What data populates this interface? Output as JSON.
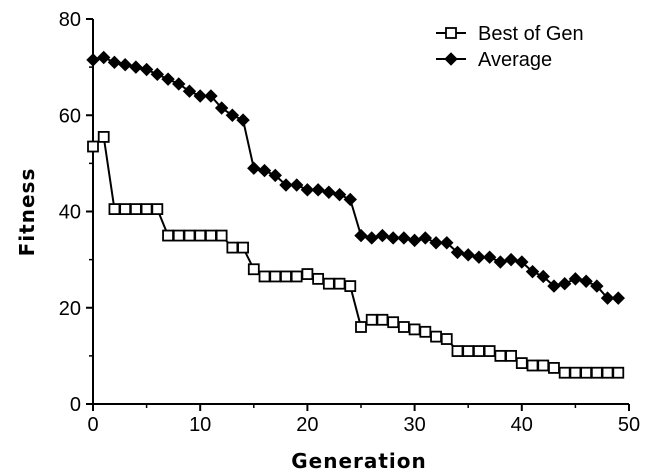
{
  "chart_data": {
    "type": "line",
    "xlabel": "Generation",
    "ylabel": "Fitness",
    "xlim": [
      0,
      50
    ],
    "ylim": [
      0,
      80
    ],
    "x_ticks": [
      0,
      10,
      20,
      30,
      40,
      50
    ],
    "y_ticks": [
      0,
      20,
      40,
      60,
      80
    ],
    "x_tick_labels": [
      "0",
      "10",
      "20",
      "30",
      "40",
      "50"
    ],
    "y_tick_labels": [
      "0",
      "20",
      "40",
      "60",
      "80"
    ],
    "grid": false,
    "legend_position": "top-right",
    "series": [
      {
        "name": "Best of Gen",
        "marker": "open-square",
        "color": "#000000",
        "x": [
          0,
          1,
          2,
          3,
          4,
          5,
          6,
          7,
          8,
          9,
          10,
          11,
          12,
          13,
          14,
          15,
          16,
          17,
          18,
          19,
          20,
          21,
          22,
          23,
          24,
          25,
          26,
          27,
          28,
          29,
          30,
          31,
          32,
          33,
          34,
          35,
          36,
          37,
          38,
          39,
          40,
          41,
          42,
          43,
          44,
          45,
          46,
          47,
          48,
          49
        ],
        "values": [
          53.5,
          55.5,
          40.5,
          40.5,
          40.5,
          40.5,
          40.5,
          35,
          35,
          35,
          35,
          35,
          35,
          32.5,
          32.5,
          28,
          26.5,
          26.5,
          26.5,
          26.5,
          27,
          26,
          25,
          25,
          24.5,
          16,
          17.5,
          17.5,
          17,
          16,
          15.5,
          15,
          14,
          13.5,
          11,
          11,
          11,
          11,
          10,
          10,
          8.5,
          8,
          8,
          7.5,
          6.5,
          6.5,
          6.5,
          6.5,
          6.5,
          6.5
        ]
      },
      {
        "name": "Average",
        "marker": "filled-diamond",
        "color": "#000000",
        "x": [
          0,
          1,
          2,
          3,
          4,
          5,
          6,
          7,
          8,
          9,
          10,
          11,
          12,
          13,
          14,
          15,
          16,
          17,
          18,
          19,
          20,
          21,
          22,
          23,
          24,
          25,
          26,
          27,
          28,
          29,
          30,
          31,
          32,
          33,
          34,
          35,
          36,
          37,
          38,
          39,
          40,
          41,
          42,
          43,
          44,
          45,
          46,
          47,
          48,
          49
        ],
        "values": [
          71.5,
          72,
          71,
          70.5,
          70,
          69.5,
          68.5,
          67.5,
          66.5,
          65,
          64,
          64,
          61.5,
          60,
          59,
          49,
          48.5,
          47.5,
          45.5,
          45.5,
          44.5,
          44.5,
          44,
          43.5,
          42.5,
          35,
          34.5,
          35,
          34.5,
          34.5,
          34,
          34.5,
          33.5,
          33.5,
          31.5,
          31,
          30.5,
          30.5,
          29.5,
          30,
          29.5,
          27.5,
          26.5,
          24.5,
          25,
          26,
          25.5,
          24.5,
          22,
          22
        ]
      }
    ]
  }
}
